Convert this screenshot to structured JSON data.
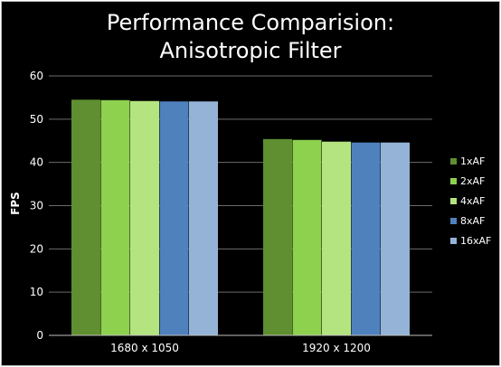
{
  "chart_data": {
    "type": "bar",
    "title": [
      "Performance Comparision:",
      "Anisotropic Filter"
    ],
    "xlabel": "",
    "ylabel": "FPS",
    "ylim": [
      0,
      60
    ],
    "yticks": [
      0,
      10,
      20,
      30,
      40,
      50,
      60
    ],
    "grid": true,
    "legend_position": "right",
    "categories": [
      "1680 x 1050",
      "1920 x 1200"
    ],
    "series": [
      {
        "name": "1xAF",
        "values": [
          54.5,
          45.4
        ],
        "color": "#5f8f30"
      },
      {
        "name": "2xAF",
        "values": [
          54.4,
          45.2
        ],
        "color": "#8dd14e"
      },
      {
        "name": "4xAF",
        "values": [
          54.2,
          44.8
        ],
        "color": "#b4e480"
      },
      {
        "name": "8xAF",
        "values": [
          54.1,
          44.6
        ],
        "color": "#4f81bd"
      },
      {
        "name": "16xAF",
        "values": [
          54.1,
          44.6
        ],
        "color": "#95b3d7"
      }
    ]
  }
}
